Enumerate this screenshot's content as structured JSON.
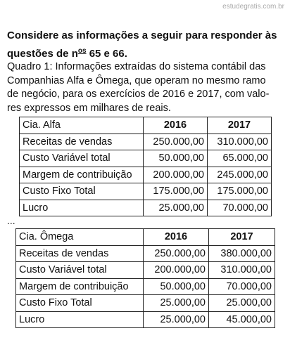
{
  "watermark": "estudegratis.com.br",
  "heading": {
    "text": "Considere as informações a seguir para responder às questões de n",
    "sup": "os",
    "tail": " 65 e 66."
  },
  "intro": {
    "lines": [
      "Quadro 1: Informações extraídas do sistema contábil das",
      "Companhias Alfa e Ômega, que operam no mesmo ramo",
      "de negócio, para os exercícios de 2016 e 2017, com valo-",
      "res expressos em milhares de reais."
    ]
  },
  "tables": [
    {
      "header": [
        "Cia. Alfa",
        "2016",
        "2017"
      ],
      "rows": [
        [
          "Receitas de vendas",
          "250.000,00",
          "310.000,00"
        ],
        [
          "Custo Variável total",
          "50.000,00",
          "65.000,00"
        ],
        [
          "Margem de contribuição",
          "200.000,00",
          "245.000,00"
        ],
        [
          "Custo Fixo Total",
          "175.000,00",
          "175.000,00"
        ],
        [
          "Lucro",
          "25.000,00",
          "70.000,00"
        ]
      ]
    },
    {
      "header": [
        "Cia. Ômega",
        "2016",
        "2017"
      ],
      "rows": [
        [
          "Receitas de vendas",
          "250.000,00",
          "380.000,00"
        ],
        [
          "Custo Variável total",
          "200.000,00",
          "310.000,00"
        ],
        [
          "Margem de contribuição",
          "50.000,00",
          "70.000,00"
        ],
        [
          "Custo Fixo Total",
          "25.000,00",
          "25.000,00"
        ],
        [
          "Lucro",
          "25.000,00",
          "45.000,00"
        ]
      ]
    }
  ],
  "ellipsis": "..."
}
